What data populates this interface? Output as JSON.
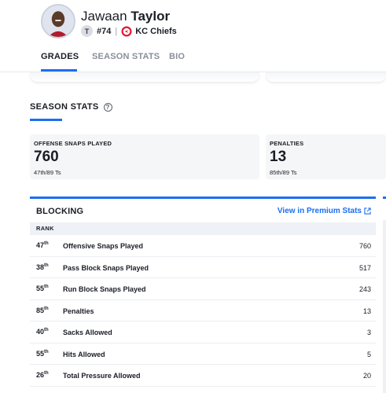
{
  "player": {
    "first_name": "Jawaan",
    "last_name": "Taylor",
    "position_badge": "T",
    "number": "#74",
    "team": "KC Chiefs",
    "team_icon": "chiefs-logo-icon"
  },
  "tabs": [
    {
      "label": "GRADES",
      "active": true
    },
    {
      "label": "SEASON STATS",
      "active": false
    },
    {
      "label": "BIO",
      "active": false
    }
  ],
  "season_stats": {
    "title": "SEASON STATS",
    "help_icon": "?",
    "cards": [
      {
        "label": "OFFENSE SNAPS PLAYED",
        "value": "760",
        "rank": "47th/89 Ts"
      },
      {
        "label": "PENALTIES",
        "value": "13",
        "rank": "85th/89 Ts"
      }
    ]
  },
  "blocking": {
    "title": "BLOCKING",
    "premium_link": "View in Premium Stats",
    "rank_header": "RANK",
    "rows": [
      {
        "rank": "47",
        "suffix": "th",
        "label": "Offensive Snaps Played",
        "value": "760"
      },
      {
        "rank": "38",
        "suffix": "th",
        "label": "Pass Block Snaps Played",
        "value": "517"
      },
      {
        "rank": "55",
        "suffix": "th",
        "label": "Run Block Snaps Played",
        "value": "243"
      },
      {
        "rank": "85",
        "suffix": "th",
        "label": "Penalties",
        "value": "13"
      },
      {
        "rank": "40",
        "suffix": "th",
        "label": "Sacks Allowed",
        "value": "3"
      },
      {
        "rank": "55",
        "suffix": "th",
        "label": "Hits Allowed",
        "value": "5"
      },
      {
        "rank": "26",
        "suffix": "th",
        "label": "Total Pressure Allowed",
        "value": "20"
      }
    ]
  },
  "colors": {
    "accent": "#1b6ef3",
    "chiefs_red": "#e31837"
  }
}
